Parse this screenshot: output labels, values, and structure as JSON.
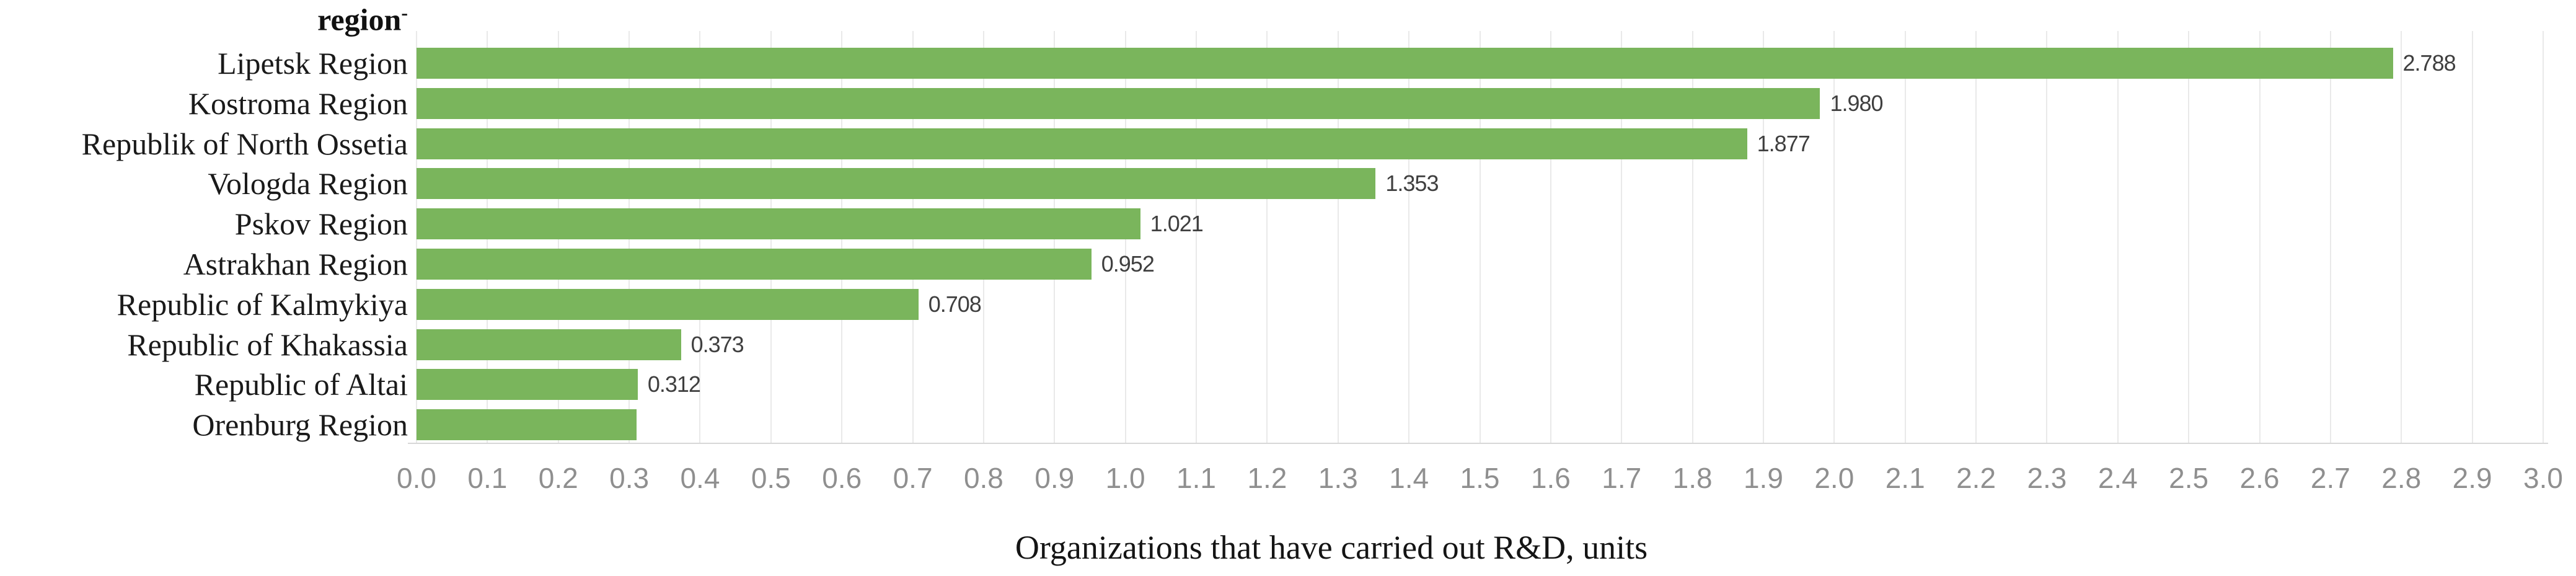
{
  "header": {
    "text": "region",
    "superscript": "-"
  },
  "colors": {
    "bar": "#7ab55c",
    "gridline": "#e9e9e9",
    "axis_line": "#d7d7d7",
    "tick_text": "#8f8f8f",
    "value_text": "#3f3f3f",
    "category_text": "#1a1a1a"
  },
  "chart_data": {
    "type": "bar",
    "orientation": "horizontal",
    "title": "",
    "xlabel": "Organizations that have carried out R&D, units",
    "ylabel": "region",
    "categories": [
      "Lipetsk Region",
      "Kostroma Region",
      "Republik of North Ossetia",
      "Vologda Region",
      "Pskov Region",
      "Astrakhan Region",
      "Republic of Kalmykiya",
      "Republic of Khakassia",
      "Republic of Altai",
      "Orenburg Region"
    ],
    "values": [
      2.788,
      1.98,
      1.877,
      1.353,
      1.021,
      0.952,
      0.708,
      0.373,
      0.312,
      0.31
    ],
    "value_labels": [
      "2.788",
      "1.980",
      "1.877",
      "1.353",
      "1.021",
      "0.952",
      "0.708",
      "0.373",
      "0.312",
      ""
    ],
    "xlim": [
      0.0,
      3.0
    ],
    "x_tick_step": 0.1,
    "x_tick_labels": [
      "0.0",
      "0.1",
      "0.2",
      "0.3",
      "0.4",
      "0.5",
      "0.6",
      "0.7",
      "0.8",
      "0.9",
      "1.0",
      "1.1",
      "1.2",
      "1.3",
      "1.4",
      "1.5",
      "1.6",
      "1.7",
      "1.8",
      "1.9",
      "2.0",
      "2.1",
      "2.2",
      "2.3",
      "2.4",
      "2.5",
      "2.6",
      "2.7",
      "2.8",
      "2.9",
      "3.0"
    ],
    "grid": true,
    "legend": false
  }
}
